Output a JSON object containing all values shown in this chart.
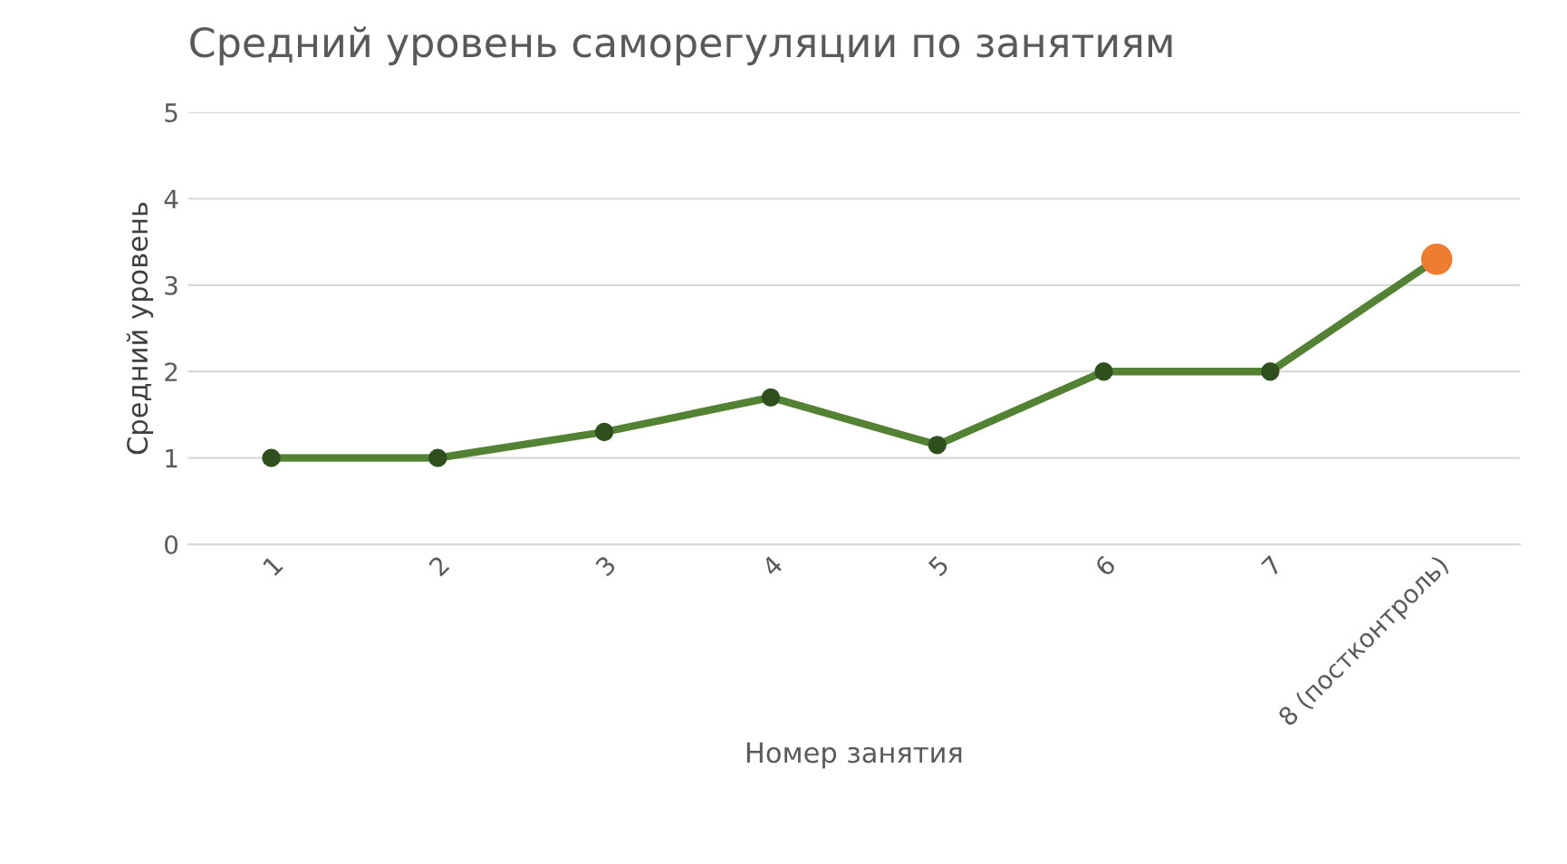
{
  "chart_data": {
    "type": "line",
    "title": "Средний уровень саморегуляции по занятиям",
    "xlabel": "Номер занятия",
    "ylabel": "Средний уровень",
    "categories": [
      "1",
      "2",
      "3",
      "4",
      "5",
      "6",
      "7",
      "8 (постконтроль)"
    ],
    "series": [
      {
        "color": "#548235",
        "colors": [
          "#2f4f1f",
          "#2f4f1f",
          "#2f4f1f",
          "#2f4f1f",
          "#2f4f1f",
          "#2f4f1f",
          "#2f4f1f",
          "#ed7d31"
        ],
        "values": [
          1.0,
          1.0,
          1.3,
          1.7,
          1.15,
          2.0,
          2.0,
          3.3
        ]
      }
    ],
    "ylim": [
      0,
      5
    ],
    "yticks": [
      0,
      1,
      2,
      3,
      4,
      5
    ],
    "grid": "y",
    "legend": false,
    "marker": "circle",
    "line_style": "solid"
  }
}
